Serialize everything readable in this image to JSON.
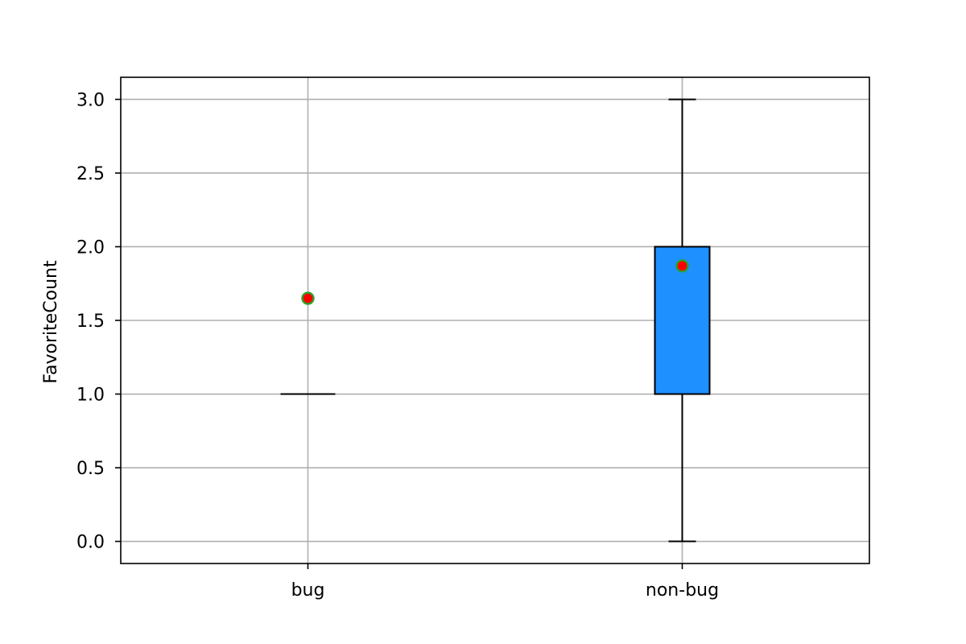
{
  "chart_data": {
    "type": "box",
    "title": "",
    "xlabel": "",
    "ylabel": "FavoriteCount",
    "categories": [
      "bug",
      "non-bug"
    ],
    "ylim": [
      -0.15,
      3.15
    ],
    "yticks": [
      0.0,
      0.5,
      1.0,
      1.5,
      2.0,
      2.5,
      3.0
    ],
    "ytick_labels": [
      "0.0",
      "0.5",
      "1.0",
      "1.5",
      "2.0",
      "2.5",
      "3.0"
    ],
    "grid": true,
    "boxes": [
      {
        "name": "bug",
        "whisker_low": 1.0,
        "q1": 1.0,
        "median": 1.0,
        "q3": 1.0,
        "whisker_high": 1.0,
        "mean": 1.65
      },
      {
        "name": "non-bug",
        "whisker_low": 0.0,
        "q1": 1.0,
        "median": 2.0,
        "q3": 2.0,
        "whisker_high": 3.0,
        "mean": 1.87
      }
    ],
    "colors": {
      "box_fill": "#1e90ff",
      "box_edge": "#000000",
      "mean_marker_fill": "#ff0000",
      "mean_marker_edge": "#2ca02c",
      "grid": "#b0b0b0"
    }
  }
}
